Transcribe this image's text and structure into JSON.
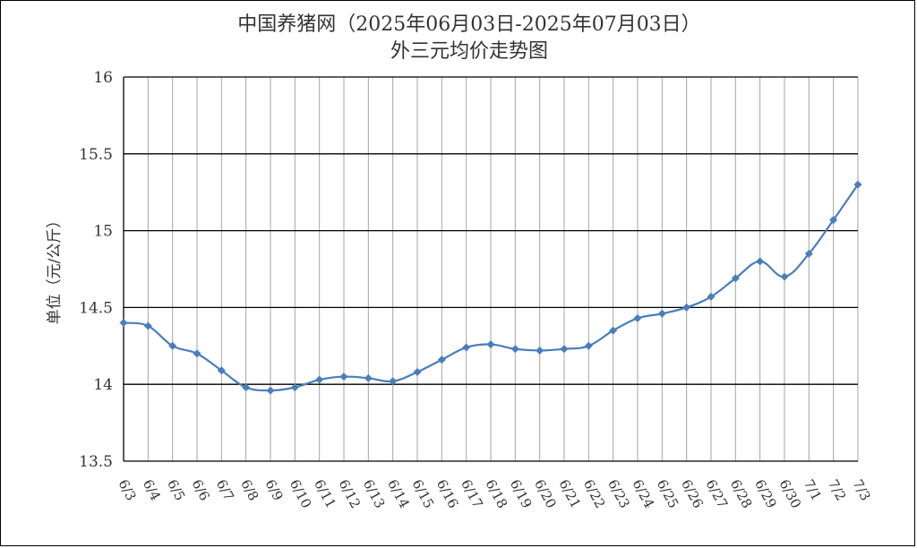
{
  "chart_data": {
    "type": "line",
    "title": "中国养猪网（2025年06月03日-2025年07月03日）",
    "subtitle": "外三元均价走势图",
    "xlabel": "",
    "ylabel": "单位（元/公斤）",
    "ylim": [
      13.5,
      16
    ],
    "yticks": [
      "13.5",
      "14",
      "14.5",
      "15",
      "15.5",
      "16"
    ],
    "grid": true,
    "legend": "none",
    "line_color": "#4a7ebb",
    "categories": [
      "6/3",
      "6/4",
      "6/5",
      "6/6",
      "6/7",
      "6/8",
      "6/9",
      "6/10",
      "6/11",
      "6/12",
      "6/13",
      "6/14",
      "6/15",
      "6/16",
      "6/17",
      "6/18",
      "6/19",
      "6/20",
      "6/21",
      "6/22",
      "6/23",
      "6/24",
      "6/25",
      "6/26",
      "6/27",
      "6/28",
      "6/29",
      "6/30",
      "7/1",
      "7/2",
      "7/3"
    ],
    "series": [
      {
        "values": [
          14.4,
          14.38,
          14.25,
          14.2,
          14.09,
          13.98,
          13.96,
          13.98,
          14.03,
          14.05,
          14.04,
          14.02,
          14.08,
          14.16,
          14.24,
          14.26,
          14.23,
          14.22,
          14.23,
          14.25,
          14.35,
          14.43,
          14.46,
          14.5,
          14.57,
          14.69,
          14.8,
          14.7,
          14.85,
          15.07,
          15.3
        ]
      }
    ]
  }
}
